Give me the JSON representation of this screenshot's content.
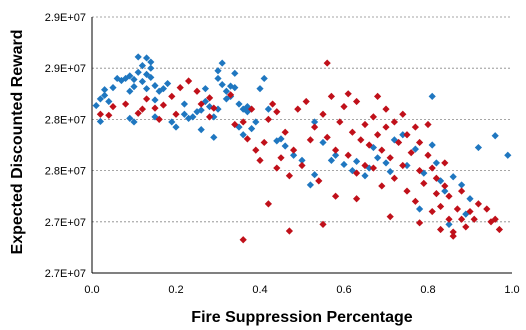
{
  "chart_data": {
    "type": "scatter",
    "xlabel": "Fire Suppression Percentage",
    "ylabel": "Expected Discounted Reward",
    "xlim": [
      0,
      1
    ],
    "ylim": [
      0,
      5
    ],
    "x_ticks": [
      "0.0",
      "0.2",
      "0.4",
      "0.6",
      "0.8",
      "1.0"
    ],
    "y_ticks": [
      "2.7E+07",
      "2.7E+07",
      "2.8E+07",
      "2.8E+07",
      "2.9E+07",
      "2.9E+07"
    ],
    "grid": "horizontal-dashed",
    "legend": "none",
    "series": [
      {
        "color": "#1f77c0",
        "marker": "diamond",
        "points": [
          [
            0.01,
            3.27
          ],
          [
            0.02,
            3.4
          ],
          [
            0.03,
            3.47
          ],
          [
            0.03,
            3.58
          ],
          [
            0.04,
            3.35
          ],
          [
            0.05,
            3.62
          ],
          [
            0.06,
            3.8
          ],
          [
            0.07,
            3.76
          ],
          [
            0.08,
            3.8
          ],
          [
            0.09,
            3.55
          ],
          [
            0.09,
            3.85
          ],
          [
            0.1,
            3.78
          ],
          [
            0.1,
            3.64
          ],
          [
            0.11,
            3.92
          ],
          [
            0.11,
            4.22
          ],
          [
            0.12,
            3.74
          ],
          [
            0.12,
            4.05
          ],
          [
            0.13,
            4.2
          ],
          [
            0.13,
            3.88
          ],
          [
            0.13,
            3.6
          ],
          [
            0.14,
            3.82
          ],
          [
            0.14,
            4.0
          ],
          [
            0.14,
            4.12
          ],
          [
            0.15,
            3.66
          ],
          [
            0.15,
            3.38
          ],
          [
            0.15,
            3.05
          ],
          [
            0.16,
            3.55
          ],
          [
            0.17,
            3.6
          ],
          [
            0.18,
            3.7
          ],
          [
            0.02,
            2.96
          ],
          [
            0.09,
            3.02
          ],
          [
            0.1,
            2.95
          ],
          [
            0.19,
            2.95
          ],
          [
            0.2,
            2.85
          ],
          [
            0.22,
            3.1
          ],
          [
            0.22,
            3.3
          ],
          [
            0.23,
            3.02
          ],
          [
            0.24,
            3.05
          ],
          [
            0.25,
            3.15
          ],
          [
            0.26,
            3.18
          ],
          [
            0.26,
            2.8
          ],
          [
            0.27,
            3.6
          ],
          [
            0.27,
            3.35
          ],
          [
            0.28,
            3.25
          ],
          [
            0.29,
            2.65
          ],
          [
            0.29,
            3.05
          ],
          [
            0.3,
            3.2
          ],
          [
            0.3,
            3.95
          ],
          [
            0.3,
            3.8
          ],
          [
            0.31,
            4.1
          ],
          [
            0.31,
            3.68
          ],
          [
            0.32,
            3.55
          ],
          [
            0.32,
            3.4
          ],
          [
            0.33,
            3.65
          ],
          [
            0.33,
            3.45
          ],
          [
            0.34,
            3.9
          ],
          [
            0.34,
            3.62
          ],
          [
            0.35,
            3.3
          ],
          [
            0.35,
            2.85
          ],
          [
            0.36,
            3.2
          ],
          [
            0.36,
            2.7
          ],
          [
            0.37,
            3.25
          ],
          [
            0.37,
            3.15
          ],
          [
            0.38,
            2.82
          ],
          [
            0.39,
            2.95
          ],
          [
            0.4,
            3.6
          ],
          [
            0.41,
            3.8
          ],
          [
            0.42,
            3.2
          ],
          [
            0.44,
            2.58
          ],
          [
            0.45,
            2.62
          ],
          [
            0.46,
            2.48
          ],
          [
            0.48,
            2.3
          ],
          [
            0.5,
            2.2
          ],
          [
            0.52,
            1.72
          ],
          [
            0.53,
            1.92
          ],
          [
            0.55,
            2.55
          ],
          [
            0.58,
            2.3
          ],
          [
            0.6,
            2.12
          ],
          [
            0.62,
            2.0
          ],
          [
            0.63,
            2.18
          ],
          [
            0.65,
            1.9
          ],
          [
            0.66,
            2.05
          ],
          [
            0.67,
            2.45
          ],
          [
            0.68,
            2.25
          ],
          [
            0.7,
            2.15
          ],
          [
            0.72,
            2.6
          ],
          [
            0.74,
            2.7
          ],
          [
            0.75,
            2.1
          ],
          [
            0.77,
            2.42
          ],
          [
            0.79,
            1.95
          ],
          [
            0.81,
            3.45
          ],
          [
            0.81,
            2.5
          ],
          [
            0.82,
            2.15
          ],
          [
            0.83,
            1.8
          ],
          [
            0.84,
            1.6
          ],
          [
            0.86,
            1.88
          ],
          [
            0.88,
            1.72
          ],
          [
            0.9,
            1.45
          ],
          [
            0.92,
            2.45
          ],
          [
            0.96,
            2.68
          ],
          [
            0.99,
            2.3
          ],
          [
            0.71,
            1.98
          ],
          [
            0.78,
            1.25
          ],
          [
            0.85,
            0.95
          ],
          [
            0.89,
            1.15
          ],
          [
            0.53,
            2.95
          ],
          [
            0.57,
            2.2
          ]
        ]
      },
      {
        "color": "#c0101a",
        "marker": "diamond",
        "points": [
          [
            0.02,
            3.1
          ],
          [
            0.04,
            3.08
          ],
          [
            0.05,
            3.25
          ],
          [
            0.08,
            3.3
          ],
          [
            0.11,
            3.12
          ],
          [
            0.12,
            3.2
          ],
          [
            0.13,
            3.4
          ],
          [
            0.15,
            3.22
          ],
          [
            0.16,
            3.0
          ],
          [
            0.17,
            3.28
          ],
          [
            0.19,
            3.45
          ],
          [
            0.2,
            3.1
          ],
          [
            0.21,
            3.62
          ],
          [
            0.23,
            3.75
          ],
          [
            0.25,
            3.55
          ],
          [
            0.26,
            3.3
          ],
          [
            0.28,
            3.42
          ],
          [
            0.28,
            3.05
          ],
          [
            0.29,
            3.22
          ],
          [
            0.33,
            3.48
          ],
          [
            0.36,
            2.95
          ],
          [
            0.37,
            2.62
          ],
          [
            0.38,
            3.2
          ],
          [
            0.39,
            2.4
          ],
          [
            0.4,
            2.2
          ],
          [
            0.41,
            2.55
          ],
          [
            0.42,
            3.0
          ],
          [
            0.43,
            3.3
          ],
          [
            0.44,
            3.15
          ],
          [
            0.45,
            2.25
          ],
          [
            0.46,
            2.75
          ],
          [
            0.47,
            1.9
          ],
          [
            0.48,
            2.4
          ],
          [
            0.49,
            3.2
          ],
          [
            0.5,
            2.1
          ],
          [
            0.51,
            3.35
          ],
          [
            0.52,
            2.6
          ],
          [
            0.53,
            2.85
          ],
          [
            0.54,
            1.8
          ],
          [
            0.55,
            3.1
          ],
          [
            0.56,
            2.65
          ],
          [
            0.56,
            4.1
          ],
          [
            0.57,
            3.45
          ],
          [
            0.58,
            2.4
          ],
          [
            0.58,
            1.5
          ],
          [
            0.59,
            2.95
          ],
          [
            0.6,
            3.25
          ],
          [
            0.61,
            2.3
          ],
          [
            0.61,
            3.5
          ],
          [
            0.62,
            2.75
          ],
          [
            0.63,
            1.95
          ],
          [
            0.63,
            3.35
          ],
          [
            0.64,
            2.6
          ],
          [
            0.65,
            2.1
          ],
          [
            0.65,
            2.9
          ],
          [
            0.66,
            2.5
          ],
          [
            0.67,
            2.05
          ],
          [
            0.67,
            3.05
          ],
          [
            0.68,
            2.7
          ],
          [
            0.68,
            3.45
          ],
          [
            0.69,
            1.7
          ],
          [
            0.69,
            2.4
          ],
          [
            0.7,
            2.85
          ],
          [
            0.7,
            3.2
          ],
          [
            0.71,
            2.25
          ],
          [
            0.72,
            2.95
          ],
          [
            0.72,
            1.85
          ],
          [
            0.73,
            2.55
          ],
          [
            0.74,
            3.1
          ],
          [
            0.74,
            2.1
          ],
          [
            0.75,
            1.6
          ],
          [
            0.75,
            2.7
          ],
          [
            0.76,
            2.35
          ],
          [
            0.77,
            1.4
          ],
          [
            0.77,
            2.85
          ],
          [
            0.78,
            2.0
          ],
          [
            0.78,
            2.55
          ],
          [
            0.79,
            1.75
          ],
          [
            0.8,
            2.3
          ],
          [
            0.8,
            2.9
          ],
          [
            0.81,
            1.2
          ],
          [
            0.81,
            2.05
          ],
          [
            0.82,
            1.55
          ],
          [
            0.82,
            1.85
          ],
          [
            0.83,
            0.85
          ],
          [
            0.83,
            1.3
          ],
          [
            0.84,
            1.7
          ],
          [
            0.84,
            2.15
          ],
          [
            0.85,
            1.05
          ],
          [
            0.85,
            1.5
          ],
          [
            0.86,
            0.72
          ],
          [
            0.87,
            1.25
          ],
          [
            0.88,
            1.6
          ],
          [
            0.88,
            1.05
          ],
          [
            0.89,
            0.9
          ],
          [
            0.9,
            1.2
          ],
          [
            0.91,
            1.05
          ],
          [
            0.92,
            1.35
          ],
          [
            0.94,
            1.25
          ],
          [
            0.95,
            1.0
          ],
          [
            0.96,
            1.05
          ],
          [
            0.97,
            0.85
          ],
          [
            0.36,
            0.65
          ],
          [
            0.47,
            0.82
          ],
          [
            0.42,
            1.35
          ],
          [
            0.55,
            0.95
          ],
          [
            0.63,
            1.45
          ],
          [
            0.71,
            1.1
          ],
          [
            0.78,
            0.98
          ],
          [
            0.86,
            0.8
          ],
          [
            0.34,
            2.9
          ],
          [
            0.44,
            2.05
          ]
        ]
      }
    ]
  }
}
